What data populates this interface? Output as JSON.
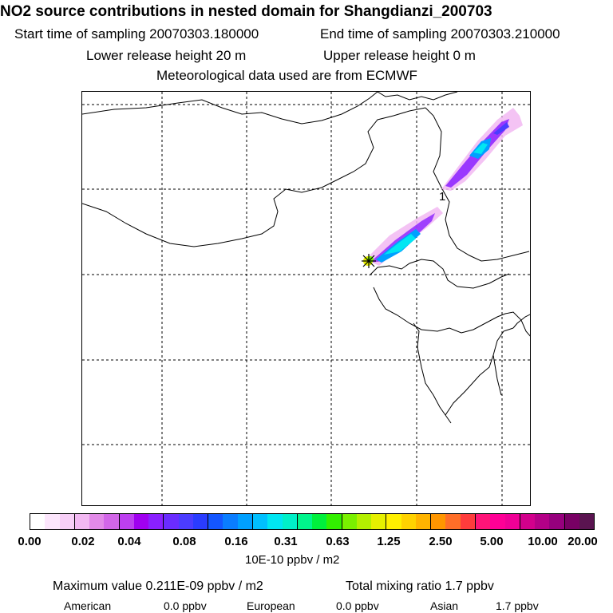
{
  "header": {
    "title": "NO2 source contributions in nested domain for Shangdianzi_200703",
    "start_time": "Start time of sampling 20070303.180000",
    "end_time": "End time of sampling 20070303.210000",
    "lower_release": "Lower release height   20 m",
    "upper_release": "Upper release height    0 m",
    "met_data": "Meteorological data used are from ECMWF"
  },
  "map": {
    "trajectory_label": "1",
    "station_marker": "receptor-star-icon"
  },
  "colorbar": {
    "tick_labels": [
      "0.00",
      "0.02",
      "0.04",
      "0.08",
      "0.16",
      "0.31",
      "0.63",
      "1.25",
      "2.50",
      "5.00",
      "10.00",
      "20.00"
    ],
    "colors": [
      "#ffffff",
      "#fce6fc",
      "#f7cff7",
      "#f2b8f2",
      "#e28ae8",
      "#d266e8",
      "#bd3ff0",
      "#a000f0",
      "#8a20ff",
      "#6a2cff",
      "#4b3cff",
      "#2a3cff",
      "#1456ff",
      "#0a7dff",
      "#00a0ff",
      "#00c0ff",
      "#00e6f2",
      "#00f0c8",
      "#00f58c",
      "#00f03c",
      "#32f000",
      "#7af000",
      "#b4f000",
      "#e6f000",
      "#fff000",
      "#ffd200",
      "#ffb400",
      "#ff9600",
      "#ff6e28",
      "#ff3c3c",
      "#ff1478",
      "#ff0096",
      "#f00096",
      "#d2008c",
      "#b40087",
      "#96007d",
      "#780064",
      "#5a1450"
    ],
    "unit": "10E-10 ppbv / m2"
  },
  "summary": {
    "max_value": "Maximum value  0.211E-09 ppbv / m2",
    "total_mixing": "Total mixing ratio       1.7 ppbv",
    "american_label": "American",
    "american_value": "0.0 ppbv",
    "european_label": "European",
    "european_value": "0.0 ppbv",
    "asian_label": "Asian",
    "asian_value": "1.7 ppbv"
  }
}
